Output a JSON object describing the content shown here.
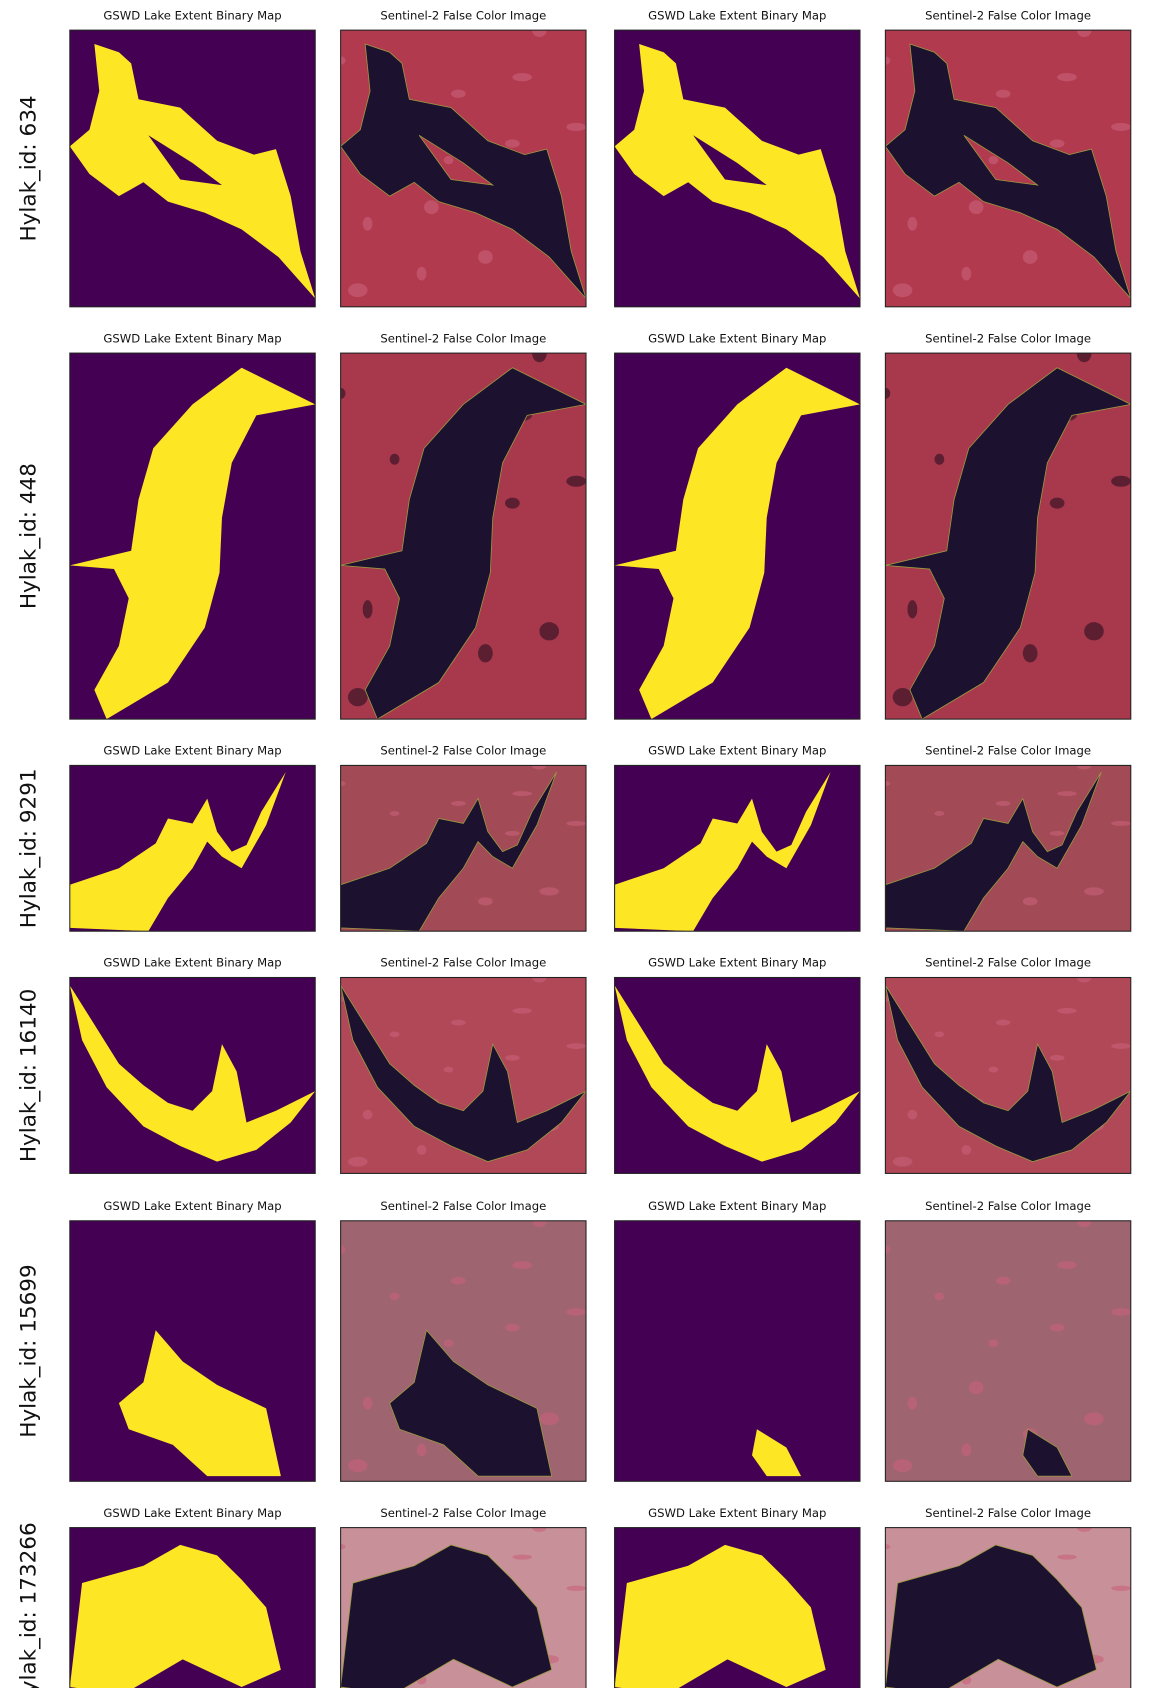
{
  "figure": {
    "rows": [
      {
        "label": "Hylak_id: 634",
        "titles": [
          "GSWD Lake Extent Binary Map",
          "Sentinel-2 False Color Image",
          "GSWD Lake Extent Binary Map",
          "Sentinel-2 False Color Image"
        ]
      },
      {
        "label": "Hylak_id: 448",
        "titles": [
          "GSWD Lake Extent Binary Map",
          "Sentinel-2 False Color Image",
          "GSWD Lake Extent Binary Map",
          "Sentinel-2 False Color Image"
        ]
      },
      {
        "label": "Hylak_id: 9291",
        "titles": [
          "GSWD Lake Extent Binary Map",
          "Sentinel-2 False Color Image",
          "GSWD Lake Extent Binary Map",
          "Sentinel-2 False Color Image"
        ]
      },
      {
        "label": "Hylak_id: 16140",
        "titles": [
          "GSWD Lake Extent Binary Map",
          "Sentinel-2 False Color Image",
          "GSWD Lake Extent Binary Map",
          "Sentinel-2 False Color Image"
        ]
      },
      {
        "label": "Hylak_id: 15699",
        "titles": [
          "GSWD Lake Extent Binary Map",
          "Sentinel-2 False Color Image",
          "GSWD Lake Extent Binary Map",
          "Sentinel-2 False Color Image"
        ]
      },
      {
        "label": "ylak_id: 173266",
        "titles": [
          "GSWD Lake Extent Binary Map",
          "Sentinel-2 False Color Image",
          "GSWD Lake Extent Binary Map",
          "Sentinel-2 False Color Image"
        ]
      }
    ]
  }
}
